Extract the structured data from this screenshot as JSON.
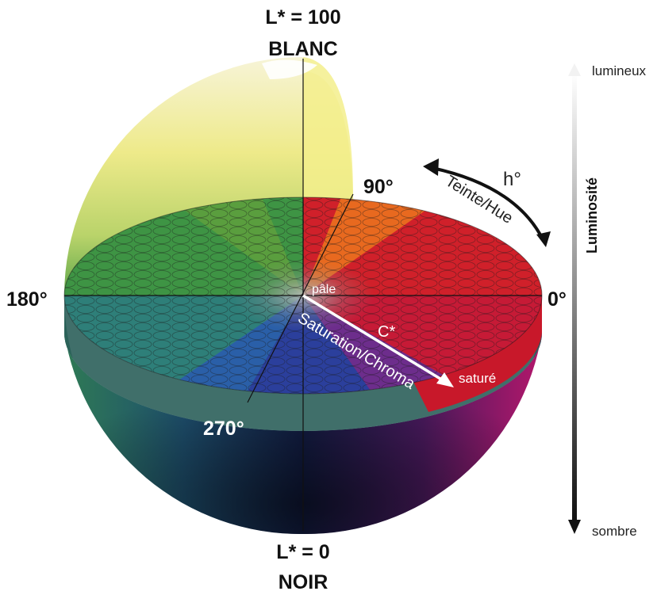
{
  "top_labels": {
    "lightness_max": "L* = 100",
    "white": "BLANC"
  },
  "bottom_labels": {
    "lightness_min": "L* = 0",
    "black": "NOIR"
  },
  "angle_labels": {
    "a0": "0°",
    "a90": "90°",
    "a180": "180°",
    "a270": "270°"
  },
  "hue_labels": {
    "symbol": "h°",
    "name": "Teinte/Hue"
  },
  "chroma_labels": {
    "symbol": "C*",
    "name": "Saturation/Chroma",
    "pale": "pâle",
    "saturated": "saturé"
  },
  "lightness_scale": {
    "title": "Luminosité",
    "light": "lumineux",
    "dark": "sombre"
  },
  "colors": {
    "red": "#d7141e",
    "orange": "#ee6f1c",
    "yellow": "#f2e640",
    "green": "#3f9a3a",
    "teal": "#2a8c86",
    "blue": "#23449c",
    "purple": "#5b2a82",
    "magenta": "#b01665",
    "navy": "#111a3a"
  }
}
